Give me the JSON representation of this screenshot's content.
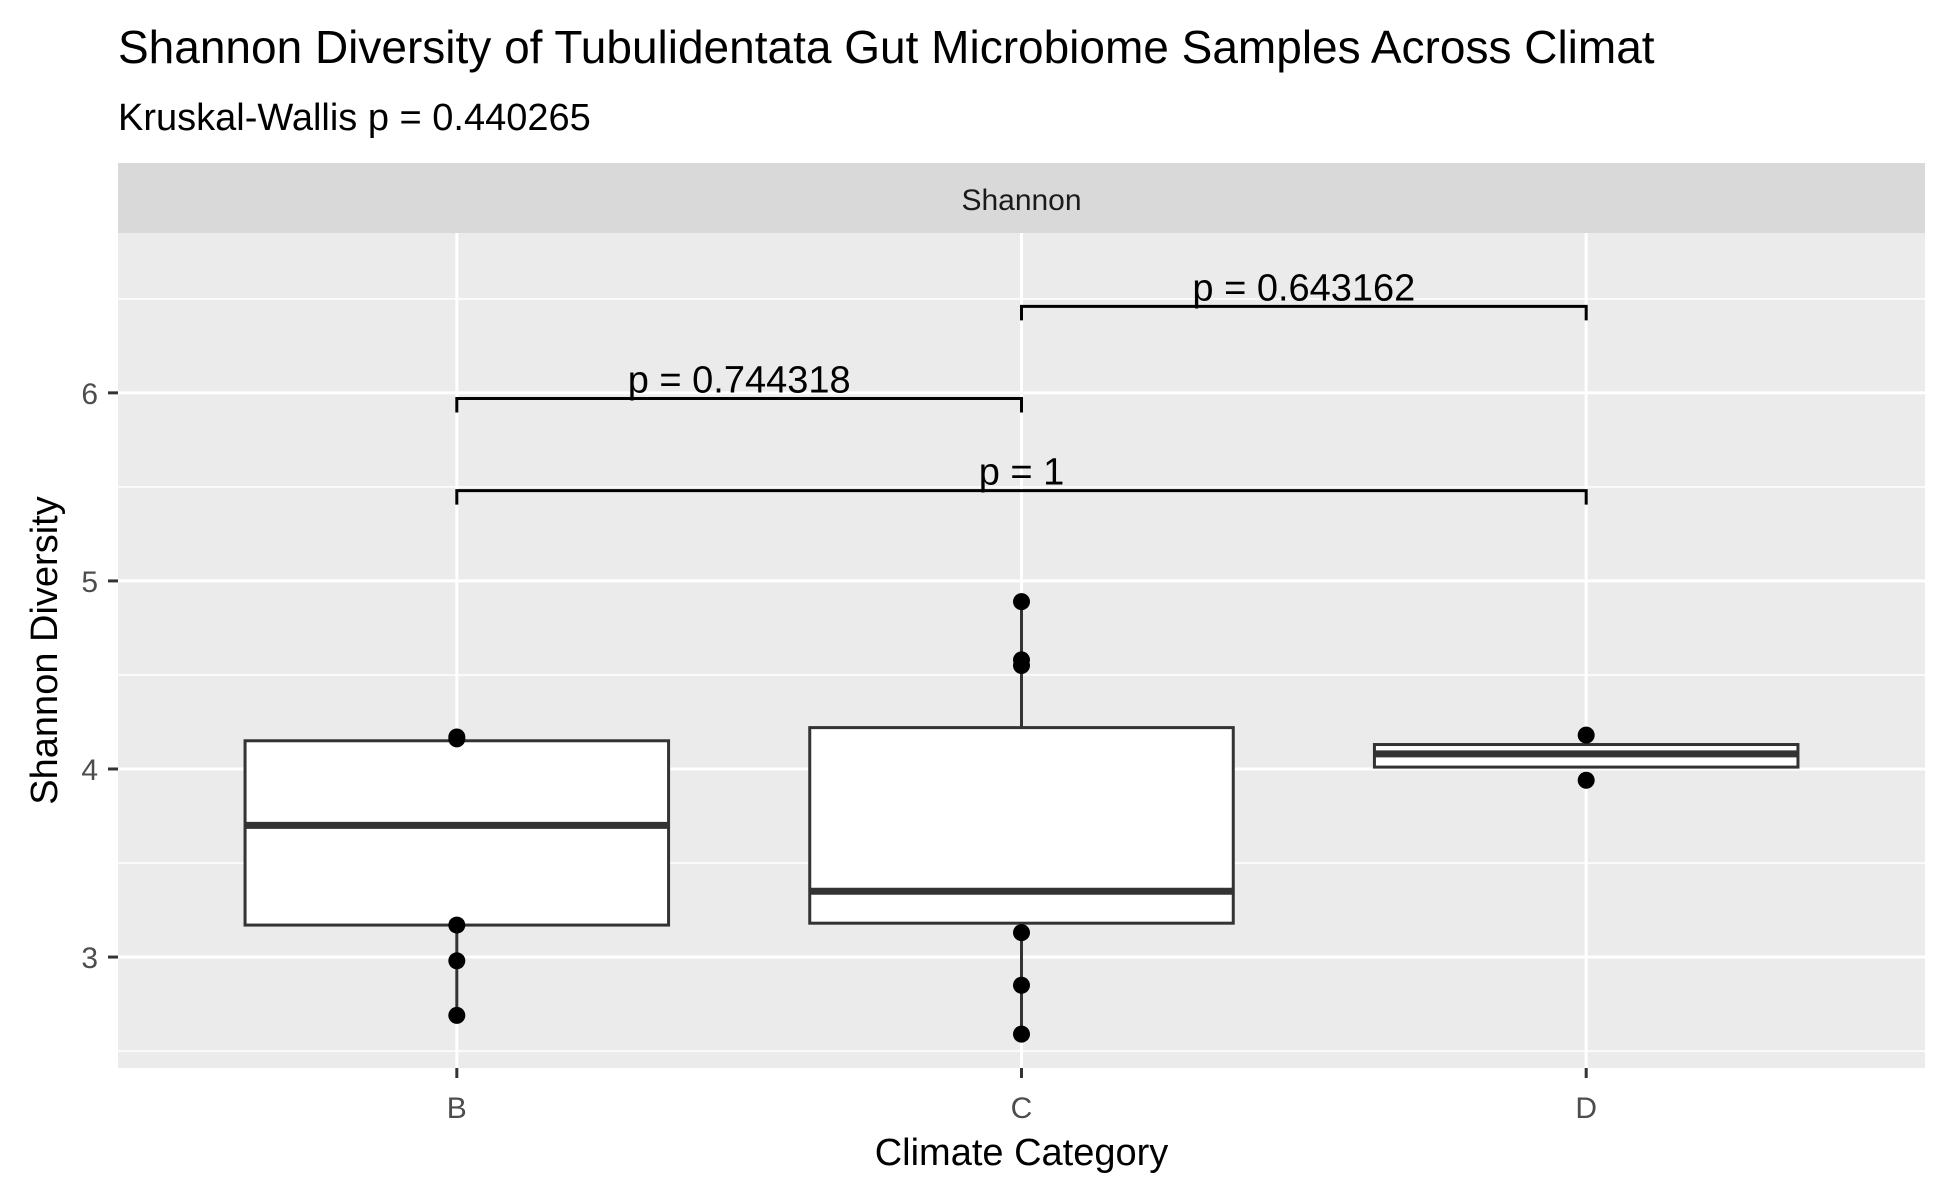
{
  "title": "Shannon Diversity of Tubulidentata Gut Microbiome Samples Across Climat",
  "subtitle": "Kruskal-Wallis p = 0.440265",
  "chart_data": {
    "type": "boxplot",
    "facet_label": "Shannon",
    "xlabel": "Climate Category",
    "ylabel": "Shannon Diversity",
    "categories": [
      "B",
      "C",
      "D"
    ],
    "ylim": [
      2.41,
      6.85
    ],
    "yticks": [
      3,
      4,
      5,
      6
    ],
    "yticks_labels": [
      "3",
      "4",
      "5",
      "6"
    ],
    "grid": true,
    "boxes": [
      {
        "category": "B",
        "q1": 3.17,
        "median": 3.7,
        "q3": 4.15,
        "whisker_low": 2.69,
        "whisker_high": 4.17
      },
      {
        "category": "C",
        "q1": 3.18,
        "median": 3.35,
        "q3": 4.22,
        "whisker_low": 2.59,
        "whisker_high": 4.89
      },
      {
        "category": "D",
        "q1": 4.01,
        "median": 4.08,
        "q3": 4.13,
        "whisker_low": 4.01,
        "whisker_high": 4.13
      }
    ],
    "points": [
      {
        "category": "B",
        "values": [
          4.17,
          4.16,
          3.17,
          2.98,
          2.69
        ]
      },
      {
        "category": "C",
        "values": [
          4.89,
          4.58,
          4.55,
          3.13,
          2.85,
          2.59
        ]
      },
      {
        "category": "D",
        "values": [
          4.18,
          3.94
        ]
      }
    ],
    "comparisons": [
      {
        "from": "C",
        "to": "D",
        "y": 6.46,
        "label": "p = 0.643162"
      },
      {
        "from": "B",
        "to": "C",
        "y": 5.97,
        "label": "p = 0.744318"
      },
      {
        "from": "B",
        "to": "D",
        "y": 5.48,
        "label": "p = 1"
      }
    ]
  }
}
